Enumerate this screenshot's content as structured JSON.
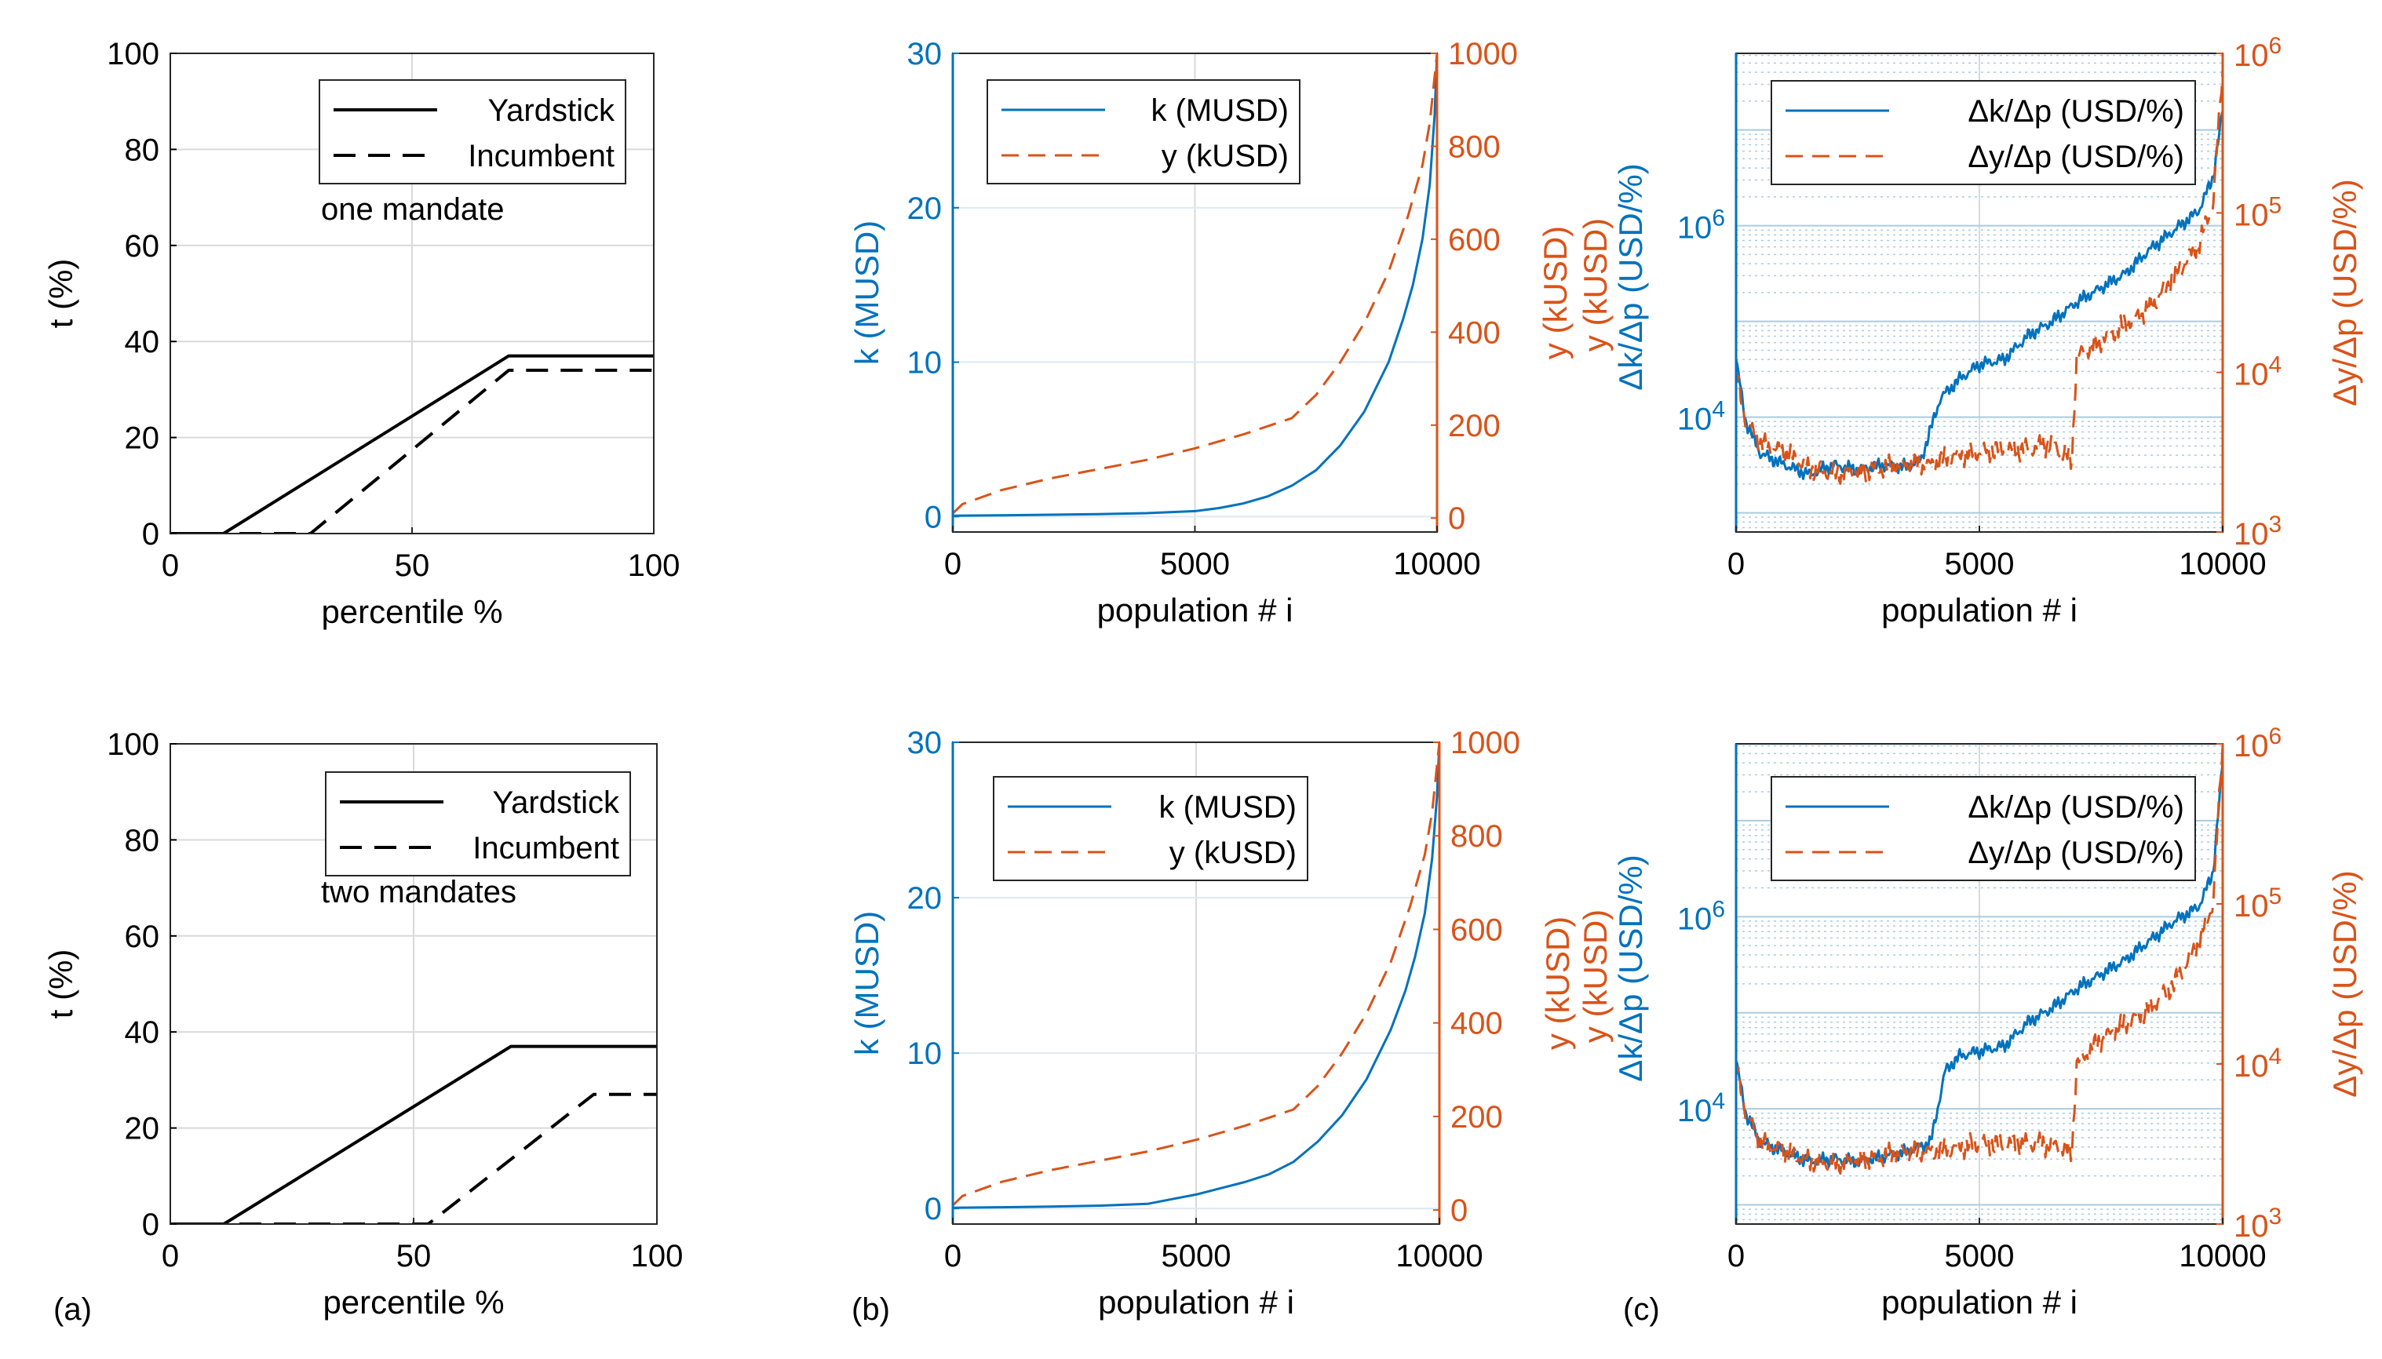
{
  "figure": {
    "panel_labels": [
      "(a)",
      "(b)",
      "(c)"
    ],
    "colors": {
      "black": "#000000",
      "blue": "#0072BD",
      "orange": "#D95319",
      "grid": "#d9d9d9",
      "loggrid": "#a9cbe0"
    }
  },
  "chart_data": [
    {
      "id": "a1",
      "type": "line",
      "title": "",
      "xlabel": "percentile %",
      "ylabel": "t (%)",
      "xlim": [
        0,
        100
      ],
      "ylim": [
        0,
        100
      ],
      "xticks": [
        0,
        50,
        100
      ],
      "xtick_labels": [
        "0",
        "50",
        "100"
      ],
      "yticks": [
        0,
        20,
        40,
        60,
        80,
        100
      ],
      "ytick_labels": [
        "0",
        "20",
        "40",
        "60",
        "80",
        "100"
      ],
      "grid": true,
      "legend": {
        "position": "top-right",
        "entries": [
          "Yardstick",
          "Incumbent"
        ]
      },
      "annotation": "one mandate",
      "series": [
        {
          "name": "Yardstick",
          "style": "solid",
          "color": "#000000",
          "x": [
            0,
            11,
            70,
            100
          ],
          "y": [
            0,
            0,
            37,
            37
          ]
        },
        {
          "name": "Incumbent",
          "style": "dashed",
          "color": "#000000",
          "x": [
            0,
            29,
            70,
            100
          ],
          "y": [
            0,
            0,
            34,
            34
          ]
        }
      ]
    },
    {
      "id": "a2",
      "type": "line",
      "title": "",
      "xlabel": "percentile %",
      "ylabel": "t (%)",
      "xlim": [
        0,
        100
      ],
      "ylim": [
        0,
        100
      ],
      "xticks": [
        0,
        50,
        100
      ],
      "xtick_labels": [
        "0",
        "50",
        "100"
      ],
      "yticks": [
        0,
        20,
        40,
        60,
        80,
        100
      ],
      "ytick_labels": [
        "0",
        "20",
        "40",
        "60",
        "80",
        "100"
      ],
      "grid": true,
      "legend": {
        "position": "top-right",
        "entries": [
          "Yardstick",
          "Incumbent"
        ]
      },
      "annotation": "two mandates",
      "series": [
        {
          "name": "Yardstick",
          "style": "solid",
          "color": "#000000",
          "x": [
            0,
            11,
            70,
            100
          ],
          "y": [
            0,
            0,
            37,
            37
          ]
        },
        {
          "name": "Incumbent",
          "style": "dashed",
          "color": "#000000",
          "x": [
            0,
            53,
            87,
            100
          ],
          "y": [
            0,
            0,
            27,
            27
          ]
        }
      ]
    },
    {
      "id": "b1",
      "type": "line",
      "title": "",
      "xlabel": "population # i",
      "ylabel": "k (MUSD)",
      "ylabel_right": "y (kUSD)",
      "xlim": [
        0,
        10000
      ],
      "ylim": [
        -1,
        30
      ],
      "ylim_right": [
        -30,
        1000
      ],
      "xticks": [
        0,
        5000,
        10000
      ],
      "xtick_labels": [
        "0",
        "5000",
        "10000"
      ],
      "yticks": [
        0,
        10,
        20,
        30
      ],
      "ytick_labels": [
        "0",
        "10",
        "20",
        "30"
      ],
      "yticks_right": [
        0,
        200,
        400,
        600,
        800,
        1000
      ],
      "ytick_labels_right": [
        "0",
        "200",
        "400",
        "600",
        "800",
        "1000"
      ],
      "grid": true,
      "legend": {
        "position": "top-left",
        "entries": [
          "k (MUSD)",
          "y (kUSD)"
        ]
      },
      "series": [
        {
          "name": "k (MUSD)",
          "axis": "left",
          "style": "solid",
          "color": "#0072BD",
          "x": [
            0,
            1000,
            2000,
            3000,
            4000,
            5000,
            5500,
            6000,
            6500,
            7000,
            7500,
            8000,
            8500,
            9000,
            9300,
            9500,
            9700,
            9850,
            9950,
            10000
          ],
          "y": [
            0.05,
            0.08,
            0.12,
            0.16,
            0.22,
            0.35,
            0.55,
            0.85,
            1.3,
            2.0,
            3.0,
            4.6,
            6.8,
            10.0,
            12.8,
            15.0,
            18.0,
            21.5,
            26.0,
            30.0
          ]
        },
        {
          "name": "y (kUSD)",
          "axis": "right",
          "style": "dashed",
          "color": "#D95319",
          "x": [
            0,
            200,
            1000,
            2000,
            3000,
            4000,
            5000,
            6000,
            7000,
            7500,
            8000,
            8500,
            9000,
            9400,
            9700,
            9850,
            9950,
            10000
          ],
          "y": [
            10,
            30,
            60,
            85,
            105,
            125,
            150,
            180,
            215,
            265,
            335,
            420,
            530,
            650,
            760,
            850,
            950,
            1000
          ]
        }
      ]
    },
    {
      "id": "b2",
      "type": "line",
      "title": "",
      "xlabel": "population # i",
      "ylabel": "k (MUSD)",
      "ylabel_right": "y (kUSD)",
      "xlim": [
        0,
        10000
      ],
      "ylim": [
        -1,
        30
      ],
      "ylim_right": [
        -30,
        1000
      ],
      "xticks": [
        0,
        5000,
        10000
      ],
      "xtick_labels": [
        "0",
        "5000",
        "10000"
      ],
      "yticks": [
        0,
        10,
        20,
        30
      ],
      "ytick_labels": [
        "0",
        "10",
        "20",
        "30"
      ],
      "yticks_right": [
        0,
        200,
        400,
        600,
        800,
        1000
      ],
      "ytick_labels_right": [
        "0",
        "200",
        "400",
        "600",
        "800",
        "1000"
      ],
      "grid": true,
      "legend": {
        "position": "top-right",
        "entries": [
          "k (MUSD)",
          "y (kUSD)"
        ]
      },
      "series": [
        {
          "name": "k (MUSD)",
          "axis": "left",
          "style": "solid",
          "color": "#0072BD",
          "x": [
            0,
            1000,
            2000,
            3000,
            4000,
            4500,
            5000,
            5500,
            6000,
            6500,
            7000,
            7500,
            8000,
            8500,
            9000,
            9300,
            9500,
            9700,
            9850,
            9950,
            10000
          ],
          "y": [
            0.05,
            0.08,
            0.12,
            0.18,
            0.3,
            0.6,
            0.9,
            1.3,
            1.7,
            2.2,
            3.0,
            4.3,
            6.0,
            8.3,
            11.5,
            14.0,
            16.2,
            19.0,
            22.5,
            26.5,
            30.0
          ]
        },
        {
          "name": "y (kUSD)",
          "axis": "right",
          "style": "dashed",
          "color": "#D95319",
          "x": [
            0,
            200,
            1000,
            2000,
            3000,
            4000,
            5000,
            6000,
            7000,
            7500,
            8000,
            8500,
            9000,
            9400,
            9700,
            9850,
            9950,
            10000
          ],
          "y": [
            10,
            30,
            60,
            85,
            105,
            125,
            150,
            180,
            215,
            265,
            335,
            420,
            530,
            650,
            760,
            850,
            950,
            1000
          ]
        }
      ]
    },
    {
      "id": "c1",
      "type": "line",
      "title": "",
      "scale": "log",
      "xlabel": "population # i",
      "ylabel": "Δk/Δp (USD/%)",
      "ylabel_right": "Δy/Δp (USD/%)",
      "xlim": [
        0,
        10000
      ],
      "ylim_log10": [
        2.8,
        7.8
      ],
      "ylim_right_log10": [
        3,
        6
      ],
      "xticks": [
        0,
        5000,
        10000
      ],
      "xtick_labels": [
        "0",
        "5000",
        "10000"
      ],
      "yticks_log10": [
        4,
        6
      ],
      "ytick_labels": [
        "10^4",
        "10^6"
      ],
      "yticks_right_log10": [
        3,
        4,
        5,
        6
      ],
      "ytick_labels_right": [
        "10^3",
        "10^4",
        "10^5",
        "10^6"
      ],
      "grid": true,
      "legend": {
        "position": "top-right",
        "entries": [
          "Δk/Δp (USD/%)",
          "Δy/Δp (USD/%)"
        ]
      },
      "series": [
        {
          "name": "Δk/Δp (USD/%)",
          "axis": "left",
          "style": "solid",
          "color": "#0072BD",
          "x": [
            0,
            200,
            500,
            1000,
            1500,
            2000,
            2500,
            3000,
            3500,
            3800,
            4200,
            4600,
            5000,
            5500,
            6000,
            6500,
            7000,
            7500,
            8000,
            8500,
            9000,
            9500,
            9800,
            10000
          ],
          "log10_y": [
            4.6,
            3.95,
            3.62,
            3.5,
            3.4,
            3.5,
            3.45,
            3.5,
            3.48,
            3.55,
            4.2,
            4.4,
            4.55,
            4.6,
            4.85,
            5.0,
            5.2,
            5.35,
            5.5,
            5.75,
            5.95,
            6.15,
            6.5,
            7.2
          ]
        },
        {
          "name": "Δy/Δp (USD/%)",
          "axis": "right",
          "style": "dashed",
          "color": "#D95319",
          "x": [
            0,
            200,
            500,
            1000,
            1500,
            2000,
            2500,
            3000,
            3500,
            4000,
            4500,
            5000,
            5500,
            6000,
            6500,
            6900,
            7000,
            7500,
            8000,
            8500,
            9000,
            9500,
            9800,
            10000
          ],
          "log10_y": [
            4.0,
            3.7,
            3.55,
            3.5,
            3.4,
            3.37,
            3.38,
            3.4,
            3.42,
            3.42,
            3.48,
            3.5,
            3.52,
            3.52,
            3.55,
            3.45,
            4.1,
            4.2,
            4.3,
            4.4,
            4.6,
            4.8,
            5.05,
            5.9
          ]
        }
      ]
    },
    {
      "id": "c2",
      "type": "line",
      "title": "",
      "scale": "log",
      "xlabel": "population # i",
      "ylabel": "Δk/Δp (USD/%)",
      "ylabel_right": "Δy/Δp (USD/%)",
      "xlim": [
        0,
        10000
      ],
      "ylim_log10": [
        2.8,
        7.8
      ],
      "ylim_right_log10": [
        3,
        6
      ],
      "xticks": [
        0,
        5000,
        10000
      ],
      "xtick_labels": [
        "0",
        "5000",
        "10000"
      ],
      "yticks_log10": [
        4,
        6
      ],
      "ytick_labels": [
        "10^4",
        "10^6"
      ],
      "yticks_right_log10": [
        3,
        4,
        5,
        6
      ],
      "ytick_labels_right": [
        "10^3",
        "10^4",
        "10^5",
        "10^6"
      ],
      "grid": true,
      "legend": {
        "position": "top-right",
        "entries": [
          "Δk/Δp (USD/%)",
          "Δy/Δp (USD/%)"
        ]
      },
      "series": [
        {
          "name": "Δk/Δp (USD/%)",
          "axis": "left",
          "style": "solid",
          "color": "#0072BD",
          "x": [
            0,
            200,
            500,
            1000,
            1500,
            2000,
            2500,
            3000,
            3500,
            4000,
            4300,
            4600,
            5000,
            5500,
            6000,
            6500,
            7000,
            7500,
            8000,
            8500,
            9000,
            9500,
            9800,
            10000
          ],
          "log10_y": [
            4.5,
            3.95,
            3.65,
            3.55,
            3.45,
            3.48,
            3.45,
            3.5,
            3.55,
            3.65,
            4.4,
            4.55,
            4.6,
            4.65,
            4.9,
            5.05,
            5.25,
            5.4,
            5.55,
            5.75,
            5.95,
            6.1,
            6.45,
            7.6
          ]
        },
        {
          "name": "Δy/Δp (USD/%)",
          "axis": "right",
          "style": "dashed",
          "color": "#D95319",
          "x": [
            0,
            200,
            500,
            1000,
            1500,
            2000,
            2500,
            3000,
            3500,
            4000,
            4500,
            5000,
            5500,
            6000,
            6500,
            6900,
            7000,
            7500,
            8000,
            8500,
            9000,
            9500,
            9800,
            10000
          ],
          "log10_y": [
            4.0,
            3.7,
            3.5,
            3.45,
            3.4,
            3.38,
            3.4,
            3.42,
            3.45,
            3.45,
            3.48,
            3.5,
            3.5,
            3.5,
            3.5,
            3.45,
            4.0,
            4.15,
            4.25,
            4.35,
            4.5,
            4.75,
            5.0,
            6.0
          ]
        }
      ]
    }
  ]
}
